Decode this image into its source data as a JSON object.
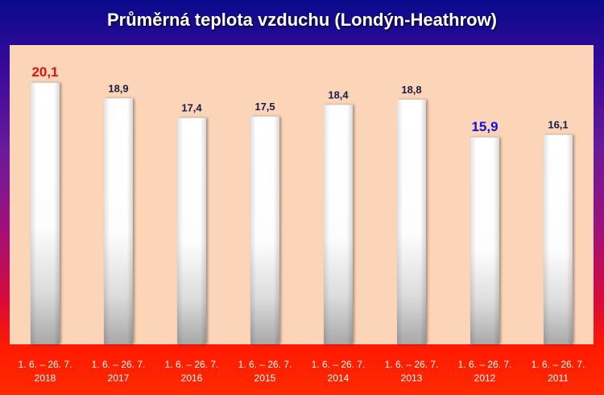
{
  "chart_data": {
    "type": "bar",
    "title": "Průměrná teplota vzduchu (Londýn-Heathrow)",
    "categories": [
      [
        "1. 6. – 26. 7.",
        "2018"
      ],
      [
        "1. 6. – 26. 7.",
        "2017"
      ],
      [
        "1. 6. – 26. 7.",
        "2016"
      ],
      [
        "1. 6. – 26. 7.",
        "2015"
      ],
      [
        "1. 6. – 26. 7.",
        "2014"
      ],
      [
        "1. 6. – 26. 7.",
        "2013"
      ],
      [
        "1. 6. – 26. 7.",
        "2012"
      ],
      [
        "1. 6. – 26. 7.",
        "2011"
      ]
    ],
    "values": [
      20.1,
      18.9,
      17.4,
      17.5,
      18.4,
      18.8,
      15.9,
      16.1
    ],
    "value_labels": [
      "20,1",
      "18,9",
      "17,4",
      "17,5",
      "18,4",
      "18,8",
      "15,9",
      "16,1"
    ],
    "ylim": [
      0,
      23.0
    ],
    "grid": false,
    "colors": {
      "bar_fill": "#ffffff",
      "bar_shade": "#b8b8b8",
      "label_default": "#1a1a4a",
      "label_max": "#e01010",
      "label_min": "#1010e0",
      "plot_background": "#fcd5b8"
    }
  }
}
